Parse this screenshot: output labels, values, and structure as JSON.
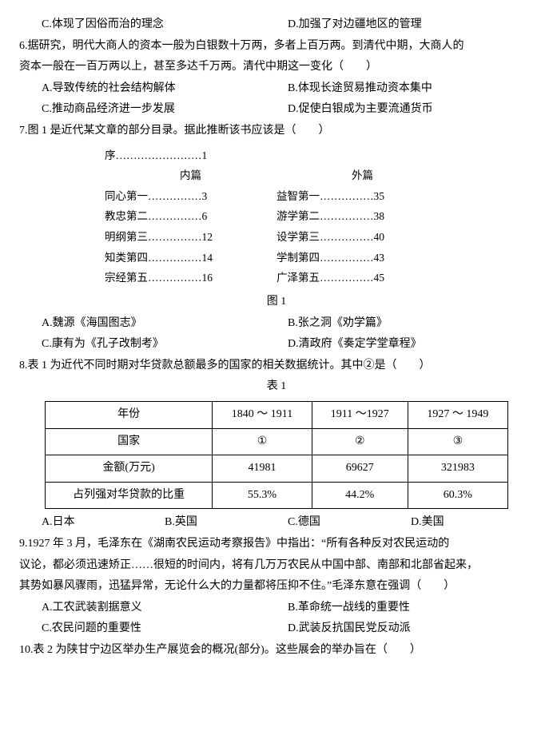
{
  "q5_opts": {
    "c": "C.体现了因俗而治的理念",
    "d": "D.加强了对边疆地区的管理"
  },
  "q6": {
    "stem1": "6.据研究，明代大商人的资本一般为白银数十万两，多者上百万两。到清代中期，大商人的",
    "stem2": "资本一般在一百万两以上，甚至多达千万两。清代中期这一变化（　　）",
    "a": "A.导致传统的社会结构解体",
    "b": "B.体现长途贸易推动资本集中",
    "c": "C.推动商品经济进一步发展",
    "d": "D.促使白银成为主要流通货币"
  },
  "q7": {
    "stem": "7.图 1 是近代某文章的部分目录。据此推断该书应该是（　　）",
    "toc": {
      "xu": "序……………………1",
      "nei": "内篇",
      "wai": "外篇",
      "l1a": "同心第一……………3",
      "l1b": "益智第一……………35",
      "l2a": "教忠第二……………6",
      "l2b": "游学第二……………38",
      "l3a": "明纲第三……………12",
      "l3b": "设学第三……………40",
      "l4a": "知类第四……………14",
      "l4b": "学制第四……………43",
      "l5a": "宗经第五……………16",
      "l5b": "广泽第五……………45"
    },
    "caption": "图 1",
    "a": "A.魏源《海国图志》",
    "b": "B.张之洞《劝学篇》",
    "c": "C.康有为《孔子改制考》",
    "d": "D.清政府《奏定学堂章程》"
  },
  "q8": {
    "stem": "8.表 1 为近代不同时期对华贷款总额最多的国家的相关数据统计。其中②是（　　）",
    "caption": "表 1",
    "headers": [
      "年份",
      "1840 ～ 1911",
      "1911 ～1927",
      "1927 ～ 1949"
    ],
    "row_country": [
      "国家",
      "①",
      "②",
      "③"
    ],
    "row_amount": [
      "金额(万元)",
      "41981",
      "69627",
      "321983"
    ],
    "row_ratio": [
      "占列强对华贷款的比重",
      "55.3%",
      "44.2%",
      "60.3%"
    ],
    "a": "A.日本",
    "b": "B.英国",
    "c": "C.德国",
    "d": "D.美国"
  },
  "q9": {
    "stem1": "9.1927 年 3 月，毛泽东在《湖南农民运动考察报告》中指出：“所有各种反对农民运动的",
    "stem2": "议论，都必须迅速矫正……很短的时间内，将有几万万农民从中国中部、南部和北部省起来，",
    "stem3": "其势如暴风骤雨，迅猛异常，无论什么大的力量都将压抑不住。”毛泽东意在强调（　　）",
    "a": "A.工农武装割据意义",
    "b": "B.革命统一战线的重要性",
    "c": "C.农民问题的重要性",
    "d": "D.武装反抗国民党反动派"
  },
  "q10": {
    "stem": "10.表 2 为陕甘宁边区举办生产展览会的概况(部分)。这些展会的举办旨在（　　）"
  }
}
